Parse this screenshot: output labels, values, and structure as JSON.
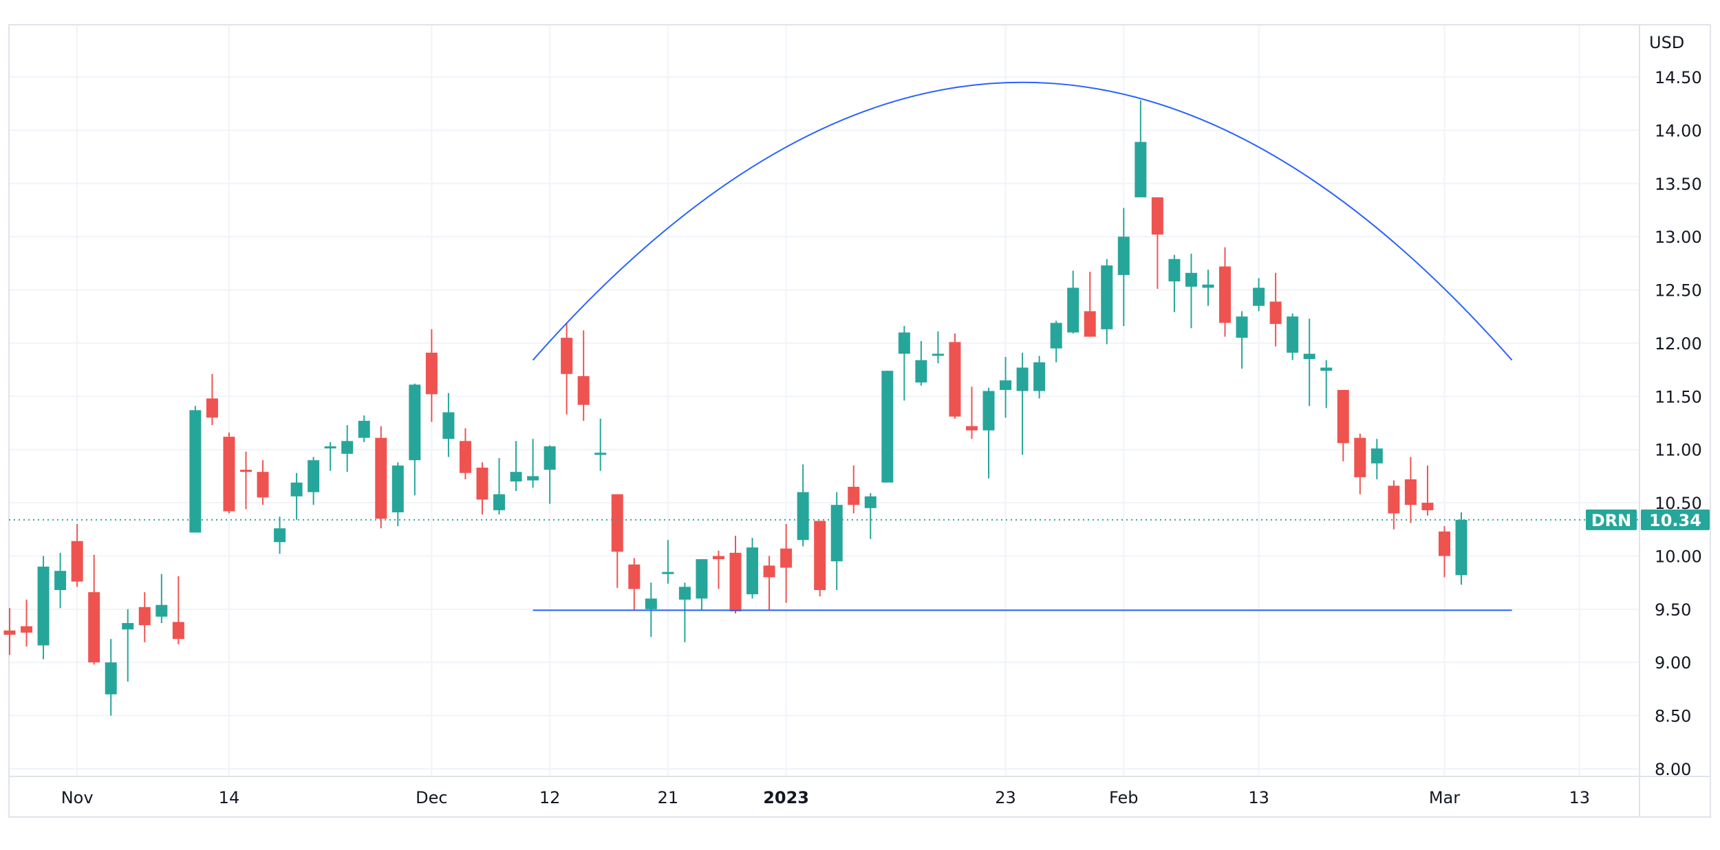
{
  "chart_data": {
    "type": "candlestick",
    "symbol": "DRN",
    "currency_label": "USD",
    "last_price": "10.34",
    "ylim": [
      8.0,
      14.5
    ],
    "y_ticks": [
      "14.50",
      "14.00",
      "13.50",
      "13.00",
      "12.50",
      "12.00",
      "11.50",
      "11.00",
      "10.50",
      "10.00",
      "9.50",
      "9.00",
      "8.50",
      "8.00"
    ],
    "x_ticks": [
      {
        "label": "Nov",
        "date": "2022-11-01",
        "bold": false
      },
      {
        "label": "14",
        "date": "2022-11-14",
        "bold": false
      },
      {
        "label": "Dec",
        "date": "2022-12-01",
        "bold": false
      },
      {
        "label": "12",
        "date": "2022-12-12",
        "bold": false
      },
      {
        "label": "21",
        "date": "2022-12-21",
        "bold": false
      },
      {
        "label": "2023",
        "date": "2023-01-03",
        "bold": true
      },
      {
        "label": "23",
        "date": "2023-01-23",
        "bold": false
      },
      {
        "label": "Feb",
        "date": "2023-02-01",
        "bold": false
      },
      {
        "label": "13",
        "date": "2023-02-13",
        "bold": false
      },
      {
        "label": "Mar",
        "date": "2023-03-01",
        "bold": false
      },
      {
        "label": "13",
        "date": "2023-03-13",
        "bold": false
      }
    ],
    "grid": true,
    "colors": {
      "up": "#26a69a",
      "down": "#ef5350",
      "drawing": "#2962ff",
      "grid": "#f0f3fa",
      "axis_text": "#131722"
    },
    "candles_columns": [
      "date",
      "open",
      "high",
      "low",
      "close"
    ],
    "candles": [
      [
        "2022-10-26",
        9.3,
        9.51,
        9.07,
        9.26
      ],
      [
        "2022-10-27",
        9.34,
        9.59,
        9.15,
        9.28
      ],
      [
        "2022-10-28",
        9.16,
        10.0,
        9.03,
        9.9
      ],
      [
        "2022-10-31",
        9.68,
        10.03,
        9.51,
        9.86
      ],
      [
        "2022-11-01",
        10.14,
        10.3,
        9.71,
        9.76
      ],
      [
        "2022-11-02",
        9.66,
        10.01,
        8.98,
        9.0
      ],
      [
        "2022-11-03",
        8.7,
        9.22,
        8.5,
        9.0
      ],
      [
        "2022-11-04",
        9.31,
        9.5,
        8.82,
        9.37
      ],
      [
        "2022-11-07",
        9.52,
        9.66,
        9.19,
        9.35
      ],
      [
        "2022-11-08",
        9.43,
        9.83,
        9.37,
        9.54
      ],
      [
        "2022-11-09",
        9.38,
        9.81,
        9.17,
        9.22
      ],
      [
        "2022-11-10",
        10.22,
        11.41,
        10.22,
        11.37
      ],
      [
        "2022-11-11",
        11.48,
        11.71,
        11.23,
        11.3
      ],
      [
        "2022-11-14",
        11.12,
        11.16,
        10.4,
        10.42
      ],
      [
        "2022-11-15",
        10.81,
        10.98,
        10.44,
        10.79
      ],
      [
        "2022-11-16",
        10.79,
        10.9,
        10.48,
        10.55
      ],
      [
        "2022-11-17",
        10.13,
        10.37,
        10.02,
        10.26
      ],
      [
        "2022-11-18",
        10.56,
        10.78,
        10.34,
        10.69
      ],
      [
        "2022-11-21",
        10.6,
        10.93,
        10.48,
        10.9
      ],
      [
        "2022-11-22",
        11.02,
        11.07,
        10.8,
        11.03
      ],
      [
        "2022-11-23",
        10.96,
        11.23,
        10.79,
        11.08
      ],
      [
        "2022-11-25",
        11.11,
        11.32,
        11.07,
        11.27
      ],
      [
        "2022-11-28",
        11.11,
        11.22,
        10.26,
        10.35
      ],
      [
        "2022-11-29",
        10.41,
        10.88,
        10.28,
        10.85
      ],
      [
        "2022-11-30",
        10.9,
        11.62,
        10.57,
        11.61
      ],
      [
        "2022-12-01",
        11.91,
        12.13,
        11.26,
        11.52
      ],
      [
        "2022-12-02",
        11.1,
        11.53,
        10.93,
        11.35
      ],
      [
        "2022-12-05",
        11.08,
        11.2,
        10.72,
        10.78
      ],
      [
        "2022-12-06",
        10.83,
        10.88,
        10.39,
        10.53
      ],
      [
        "2022-12-07",
        10.43,
        10.92,
        10.39,
        10.58
      ],
      [
        "2022-12-08",
        10.7,
        11.08,
        10.61,
        10.79
      ],
      [
        "2022-12-09",
        10.71,
        11.1,
        10.64,
        10.75
      ],
      [
        "2022-12-12",
        10.81,
        11.04,
        10.49,
        11.03
      ],
      [
        "2022-12-13",
        12.05,
        12.19,
        11.33,
        11.71
      ],
      [
        "2022-12-14",
        11.69,
        12.12,
        11.27,
        11.42
      ],
      [
        "2022-12-15",
        10.95,
        11.29,
        10.8,
        10.97
      ],
      [
        "2022-12-16",
        10.58,
        10.58,
        9.7,
        10.04
      ],
      [
        "2022-12-19",
        9.92,
        9.98,
        9.49,
        9.69
      ],
      [
        "2022-12-20",
        9.5,
        9.75,
        9.24,
        9.6
      ],
      [
        "2022-12-21",
        9.83,
        10.15,
        9.74,
        9.85
      ],
      [
        "2022-12-22",
        9.59,
        9.75,
        9.19,
        9.71
      ],
      [
        "2022-12-23",
        9.6,
        9.97,
        9.49,
        9.97
      ],
      [
        "2022-12-27",
        10.0,
        10.05,
        9.69,
        9.97
      ],
      [
        "2022-12-28",
        10.03,
        10.19,
        9.46,
        9.48
      ],
      [
        "2022-12-29",
        9.64,
        10.17,
        9.6,
        10.08
      ],
      [
        "2022-12-30",
        9.91,
        10.0,
        9.49,
        9.8
      ],
      [
        "2023-01-03",
        10.07,
        10.3,
        9.56,
        9.89
      ],
      [
        "2023-01-04",
        10.15,
        10.86,
        10.09,
        10.6
      ],
      [
        "2023-01-05",
        10.33,
        10.33,
        9.62,
        9.68
      ],
      [
        "2023-01-06",
        9.95,
        10.6,
        9.68,
        10.48
      ],
      [
        "2023-01-09",
        10.65,
        10.85,
        10.4,
        10.48
      ],
      [
        "2023-01-10",
        10.45,
        10.59,
        10.16,
        10.56
      ],
      [
        "2023-01-11",
        10.69,
        11.74,
        10.69,
        11.74
      ],
      [
        "2023-01-12",
        11.9,
        12.16,
        11.46,
        12.1
      ],
      [
        "2023-01-13",
        11.63,
        12.02,
        11.6,
        11.84
      ],
      [
        "2023-01-17",
        11.89,
        12.11,
        11.81,
        11.9
      ],
      [
        "2023-01-18",
        12.01,
        12.09,
        11.29,
        11.31
      ],
      [
        "2023-01-19",
        11.22,
        11.59,
        11.1,
        11.18
      ],
      [
        "2023-01-20",
        11.18,
        11.58,
        10.73,
        11.55
      ],
      [
        "2023-01-23",
        11.56,
        11.87,
        11.3,
        11.65
      ],
      [
        "2023-01-24",
        11.55,
        11.91,
        10.95,
        11.77
      ],
      [
        "2023-01-25",
        11.55,
        11.88,
        11.48,
        11.82
      ],
      [
        "2023-01-26",
        11.95,
        12.21,
        11.82,
        12.19
      ],
      [
        "2023-01-27",
        12.1,
        12.68,
        12.09,
        12.52
      ],
      [
        "2023-01-30",
        12.3,
        12.67,
        12.06,
        12.06
      ],
      [
        "2023-01-31",
        12.13,
        12.79,
        11.99,
        12.73
      ],
      [
        "2023-02-01",
        12.64,
        13.27,
        12.16,
        13.0
      ],
      [
        "2023-02-02",
        13.37,
        14.28,
        13.37,
        13.89
      ],
      [
        "2023-02-03",
        13.37,
        13.37,
        12.51,
        13.02
      ],
      [
        "2023-02-06",
        12.58,
        12.83,
        12.29,
        12.79
      ],
      [
        "2023-02-07",
        12.53,
        12.84,
        12.14,
        12.66
      ],
      [
        "2023-02-08",
        12.52,
        12.69,
        12.35,
        12.55
      ],
      [
        "2023-02-09",
        12.72,
        12.9,
        12.06,
        12.19
      ],
      [
        "2023-02-10",
        12.05,
        12.3,
        11.76,
        12.25
      ],
      [
        "2023-02-13",
        12.35,
        12.61,
        12.3,
        12.52
      ],
      [
        "2023-02-14",
        12.39,
        12.66,
        11.97,
        12.18
      ],
      [
        "2023-02-15",
        11.91,
        12.28,
        11.84,
        12.25
      ],
      [
        "2023-02-16",
        11.85,
        12.23,
        11.41,
        11.9
      ],
      [
        "2023-02-17",
        11.74,
        11.84,
        11.39,
        11.77
      ],
      [
        "2023-02-21",
        11.56,
        11.56,
        10.89,
        11.06
      ],
      [
        "2023-02-22",
        11.11,
        11.15,
        10.58,
        10.74
      ],
      [
        "2023-02-23",
        10.87,
        11.1,
        10.72,
        11.01
      ],
      [
        "2023-02-24",
        10.66,
        10.71,
        10.25,
        10.4
      ],
      [
        "2023-02-27",
        10.72,
        10.93,
        10.31,
        10.48
      ],
      [
        "2023-02-28",
        10.5,
        10.85,
        10.38,
        10.43
      ],
      [
        "2023-03-01",
        10.23,
        10.28,
        9.8,
        10.0
      ],
      [
        "2023-03-02",
        9.82,
        10.41,
        9.73,
        10.34
      ]
    ],
    "drawings": {
      "arc": {
        "start": {
          "date": "2022-12-09",
          "price": 11.84
        },
        "peak": {
          "date": "2023-01-24",
          "price": 14.45
        },
        "end": {
          "date": "2023-03-07",
          "price": 11.84
        }
      },
      "support_line": {
        "start_date": "2022-12-09",
        "end_date": "2023-03-07",
        "price": 9.49
      }
    }
  }
}
